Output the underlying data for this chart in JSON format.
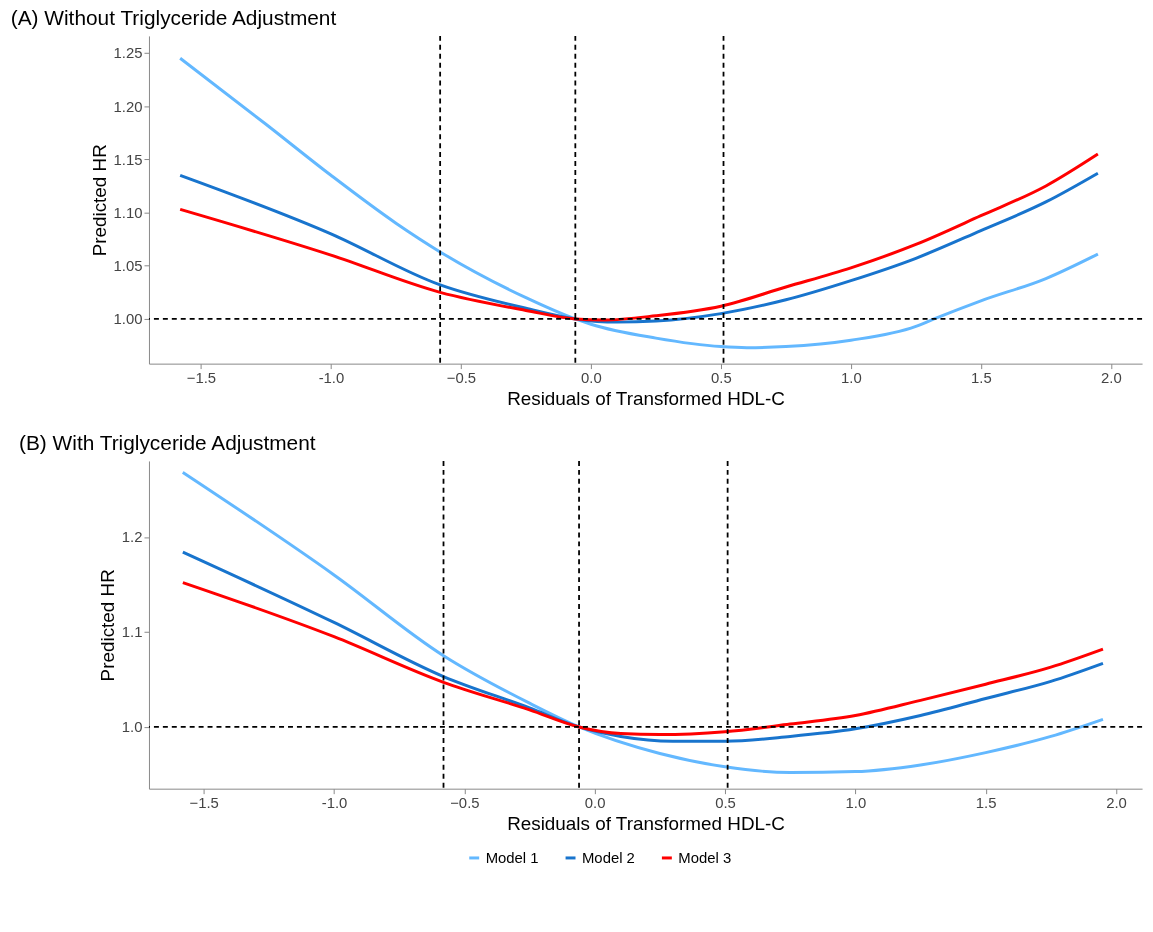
{
  "chart_data": [
    {
      "type": "line",
      "title": "(A) Without Triglyceride Adjustment",
      "xlabel": "Residuals of Transformed HDL-C",
      "ylabel": "Predicted HR",
      "xlim": [
        -1.7,
        2.12
      ],
      "xticks": [
        -1.5,
        {
          "value": -1.0,
          "label": "-1.0"
        },
        -0.5,
        {
          "value": 0.0,
          "label": "0.0"
        },
        0.5,
        {
          "value": 1.0,
          "label": "1.0"
        },
        1.5,
        {
          "value": 2.0,
          "label": "2.0"
        }
      ],
      "ylim": [
        0.958,
        1.266
      ],
      "yticks": [
        {
          "value": 1.0,
          "label": "1.00"
        },
        1.05,
        {
          "value": 1.1,
          "label": "1.10"
        },
        1.15,
        {
          "value": 1.2,
          "label": "1.20"
        },
        1.25
      ],
      "grid": false,
      "series": [
        {
          "color": "#63b8ff",
          "x": [
            -1.58,
            -1.25,
            -1.0,
            -0.75,
            -0.58,
            -0.25,
            -0.06,
            0.0,
            0.25,
            0.5,
            0.6,
            0.75,
            1.0,
            1.25,
            1.32,
            1.5,
            1.75,
            1.95
          ],
          "values": [
            1.245,
            1.183,
            1.135,
            1.09,
            1.063,
            1.02,
            1.0,
            0.995,
            0.982,
            0.974,
            0.973,
            0.974,
            0.98,
            0.993,
            1.0,
            1.017,
            1.038,
            1.061
          ]
        },
        {
          "color": "#1874cd",
          "x": [
            -1.58,
            -1.0,
            -0.58,
            -0.25,
            -0.06,
            0.1,
            0.25,
            0.5,
            0.75,
            1.0,
            1.25,
            1.5,
            1.75,
            1.95
          ],
          "values": [
            1.135,
            1.08,
            1.032,
            1.01,
            1.0,
            0.997,
            0.998,
            1.005,
            1.018,
            1.036,
            1.057,
            1.083,
            1.11,
            1.137
          ]
        },
        {
          "color": "#ff0000",
          "x": [
            -1.58,
            -1.0,
            -0.58,
            -0.25,
            -0.06,
            0.05,
            0.25,
            0.5,
            0.75,
            1.0,
            1.25,
            1.5,
            1.75,
            1.95
          ],
          "values": [
            1.103,
            1.06,
            1.025,
            1.008,
            1.0,
            0.999,
            1.003,
            1.012,
            1.03,
            1.048,
            1.07,
            1.097,
            1.125,
            1.155
          ]
        }
      ],
      "ref_lines": [
        {
          "axis": "x",
          "value": -0.58,
          "color": "#000000",
          "line_style": "dashed"
        },
        {
          "axis": "x",
          "value": -0.06,
          "color": "#000000",
          "line_style": "dashed"
        },
        {
          "axis": "x",
          "value": 0.51,
          "color": "#000000",
          "line_style": "dashed"
        },
        {
          "axis": "y",
          "value": 1.0,
          "color": "#000000",
          "line_style": "dashed"
        }
      ]
    },
    {
      "type": "line",
      "title": "(B) With Triglyceride Adjustment",
      "xlabel": "Residuals of Transformed HDL-C",
      "ylabel": "Predicted HR",
      "xlim": [
        -1.71,
        2.1
      ],
      "xticks": [
        -1.5,
        {
          "value": -1.0,
          "label": "-1.0"
        },
        -0.5,
        {
          "value": 0.0,
          "label": "0.0"
        },
        0.5,
        {
          "value": 1.0,
          "label": "1.0"
        },
        1.5,
        {
          "value": 2.0,
          "label": "2.0"
        }
      ],
      "ylim": [
        0.935,
        1.28
      ],
      "yticks": [
        {
          "value": 1.0,
          "label": "1.0"
        },
        1.1,
        1.2
      ],
      "grid": false,
      "legend": "bottom",
      "series": [
        {
          "name": "Model 1",
          "color": "#63b8ff",
          "x": [
            -1.58,
            -1.0,
            -0.58,
            -0.25,
            -0.06,
            0.25,
            0.5,
            0.75,
            1.0,
            1.25,
            1.5,
            1.75,
            1.95
          ],
          "values": [
            1.268,
            1.16,
            1.075,
            1.025,
            1.0,
            0.972,
            0.958,
            0.952,
            0.953,
            0.96,
            0.973,
            0.99,
            1.008
          ]
        },
        {
          "name": "Model 2",
          "color": "#1874cd",
          "x": [
            -1.58,
            -1.0,
            -0.58,
            -0.25,
            -0.06,
            0.1,
            0.3,
            0.5,
            0.75,
            1.0,
            1.25,
            1.5,
            1.75,
            1.95
          ],
          "values": [
            1.184,
            1.11,
            1.053,
            1.02,
            1.0,
            0.99,
            0.985,
            0.985,
            0.99,
            0.998,
            1.012,
            1.03,
            1.048,
            1.067
          ]
        },
        {
          "name": "Model 3",
          "color": "#ff0000",
          "x": [
            -1.58,
            -1.0,
            -0.58,
            -0.25,
            -0.06,
            0.1,
            0.25,
            0.5,
            0.75,
            1.0,
            1.25,
            1.5,
            1.75,
            1.95
          ],
          "values": [
            1.152,
            1.095,
            1.047,
            1.018,
            1.0,
            0.993,
            0.992,
            0.995,
            1.003,
            1.012,
            1.028,
            1.045,
            1.063,
            1.082
          ]
        }
      ],
      "ref_lines": [
        {
          "axis": "x",
          "value": -0.58,
          "color": "#000000",
          "line_style": "dashed"
        },
        {
          "axis": "x",
          "value": -0.06,
          "color": "#000000",
          "line_style": "dashed"
        },
        {
          "axis": "x",
          "value": 0.51,
          "color": "#000000",
          "line_style": "dashed"
        },
        {
          "axis": "y",
          "value": 1.0,
          "color": "#000000",
          "line_style": "dashed"
        }
      ]
    }
  ]
}
